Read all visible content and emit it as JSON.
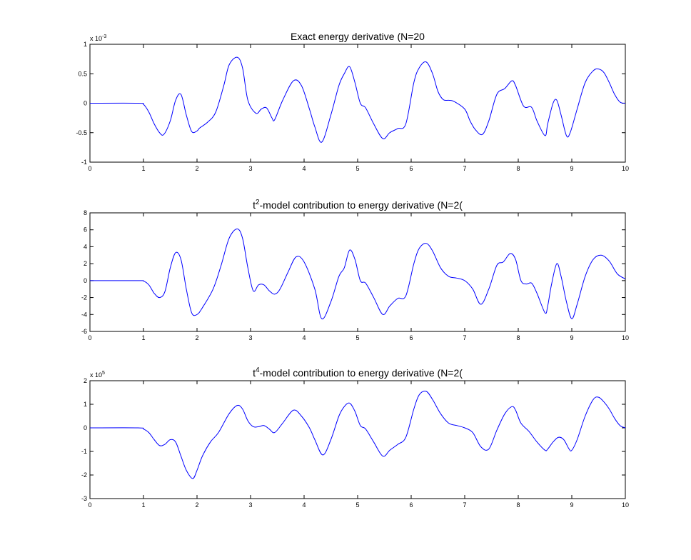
{
  "chart_data": [
    {
      "type": "line",
      "title_prefix": "Exact energy derivative (N=20",
      "title_sup": "",
      "title_suffix": "",
      "exponent_label": {
        "base": "x 10",
        "power": "-3"
      },
      "xlim": [
        0,
        10
      ],
      "ylim": [
        -1,
        1
      ],
      "xticks": [
        0,
        1,
        2,
        3,
        4,
        5,
        6,
        7,
        8,
        9,
        10
      ],
      "yticks": [
        -1,
        -0.5,
        0,
        0.5,
        1
      ],
      "ytick_labels": [
        "-1",
        "-0.5",
        "0",
        "0.5",
        "1"
      ],
      "color": "#0000ff",
      "x": [
        0,
        0.9,
        1.0,
        1.1,
        1.2,
        1.3,
        1.38,
        1.5,
        1.6,
        1.7,
        1.8,
        1.9,
        2.0,
        2.05,
        2.2,
        2.35,
        2.5,
        2.6,
        2.75,
        2.85,
        2.95,
        3.1,
        3.2,
        3.3,
        3.4,
        3.45,
        3.6,
        3.8,
        3.95,
        4.1,
        4.2,
        4.33,
        4.5,
        4.65,
        4.75,
        4.85,
        4.95,
        5.05,
        5.15,
        5.3,
        5.47,
        5.6,
        5.75,
        5.9,
        6.05,
        6.15,
        6.28,
        6.4,
        6.5,
        6.6,
        6.7,
        6.8,
        7.0,
        7.1,
        7.2,
        7.33,
        7.45,
        7.6,
        7.75,
        7.88,
        7.95,
        8.1,
        8.25,
        8.35,
        8.5,
        8.55,
        8.65,
        8.72,
        8.8,
        8.9,
        8.97,
        9.1,
        9.25,
        9.4,
        9.5,
        9.6,
        9.7,
        9.8,
        9.9,
        10
      ],
      "y": [
        0,
        0,
        -0.02,
        -0.15,
        -0.35,
        -0.5,
        -0.53,
        -0.3,
        0.05,
        0.15,
        -0.2,
        -0.48,
        -0.47,
        -0.42,
        -0.32,
        -0.15,
        0.3,
        0.65,
        0.78,
        0.6,
        0.05,
        -0.17,
        -0.1,
        -0.08,
        -0.25,
        -0.28,
        0.05,
        0.38,
        0.3,
        -0.1,
        -0.4,
        -0.66,
        -0.2,
        0.3,
        0.5,
        0.62,
        0.35,
        0.0,
        -0.08,
        -0.35,
        -0.6,
        -0.5,
        -0.43,
        -0.35,
        0.35,
        0.6,
        0.7,
        0.5,
        0.2,
        0.06,
        0.05,
        0.03,
        -0.1,
        -0.3,
        -0.45,
        -0.53,
        -0.3,
        0.15,
        0.25,
        0.38,
        0.3,
        -0.05,
        -0.07,
        -0.3,
        -0.55,
        -0.35,
        0.0,
        0.05,
        -0.2,
        -0.55,
        -0.5,
        -0.1,
        0.35,
        0.55,
        0.58,
        0.52,
        0.35,
        0.15,
        0.02,
        0
      ]
    },
    {
      "type": "line",
      "title_prefix": "t",
      "title_sup": "2",
      "title_suffix": "-model contribution to energy derivative (N=2(",
      "exponent_label": null,
      "xlim": [
        0,
        10
      ],
      "ylim": [
        -6,
        8
      ],
      "xticks": [
        0,
        1,
        2,
        3,
        4,
        5,
        6,
        7,
        8,
        9,
        10
      ],
      "yticks": [
        -6,
        -4,
        -2,
        0,
        2,
        4,
        6,
        8
      ],
      "ytick_labels": [
        "-6",
        "-4",
        "-2",
        "0",
        "2",
        "4",
        "6",
        "8"
      ],
      "color": "#0000ff",
      "x": [
        0,
        0.9,
        1.0,
        1.1,
        1.2,
        1.3,
        1.4,
        1.5,
        1.6,
        1.7,
        1.8,
        1.9,
        2.0,
        2.1,
        2.3,
        2.45,
        2.6,
        2.75,
        2.85,
        2.95,
        3.05,
        3.15,
        3.25,
        3.35,
        3.45,
        3.55,
        3.7,
        3.85,
        4.0,
        4.2,
        4.33,
        4.5,
        4.65,
        4.75,
        4.85,
        4.95,
        5.05,
        5.15,
        5.3,
        5.47,
        5.6,
        5.75,
        5.9,
        6.05,
        6.15,
        6.28,
        6.4,
        6.55,
        6.7,
        6.85,
        7.0,
        7.15,
        7.3,
        7.45,
        7.6,
        7.72,
        7.85,
        7.95,
        8.05,
        8.15,
        8.25,
        8.35,
        8.5,
        8.55,
        8.62,
        8.72,
        8.8,
        8.9,
        9.0,
        9.1,
        9.25,
        9.4,
        9.55,
        9.7,
        9.85,
        10
      ],
      "y": [
        0,
        0,
        -0.05,
        -0.5,
        -1.5,
        -2.0,
        -1.3,
        1.5,
        3.3,
        2.5,
        -1.0,
        -3.8,
        -4.0,
        -3.2,
        -1.0,
        1.8,
        5.0,
        6.1,
        5.0,
        1.5,
        -1.2,
        -0.5,
        -0.5,
        -1.2,
        -1.6,
        -1.0,
        1.0,
        2.8,
        2.2,
        -1.0,
        -4.5,
        -2.5,
        0.5,
        1.5,
        3.6,
        2.5,
        0.0,
        -0.3,
        -2.0,
        -4.0,
        -3.0,
        -2.1,
        -1.8,
        2.0,
        3.8,
        4.4,
        3.5,
        1.5,
        0.5,
        0.3,
        0.0,
        -1.0,
        -2.8,
        -1.0,
        1.8,
        2.2,
        3.2,
        2.5,
        0.0,
        -0.4,
        -0.3,
        -1.5,
        -3.8,
        -3.0,
        -0.5,
        2.0,
        0.5,
        -2.5,
        -4.5,
        -2.8,
        0.5,
        2.5,
        3.0,
        2.3,
        0.8,
        0.2
      ]
    },
    {
      "type": "line",
      "title_prefix": "t",
      "title_sup": "4",
      "title_suffix": "-model contribution to energy derivative (N=2(",
      "exponent_label": {
        "base": "x 10",
        "power": "5"
      },
      "xlim": [
        0,
        10
      ],
      "ylim": [
        -3,
        2
      ],
      "xticks": [
        0,
        1,
        2,
        3,
        4,
        5,
        6,
        7,
        8,
        9,
        10
      ],
      "yticks": [
        -3,
        -2,
        -1,
        0,
        1,
        2
      ],
      "ytick_labels": [
        "-3",
        "-2",
        "-1",
        "0",
        "1",
        "2"
      ],
      "color": "#0000ff",
      "x": [
        0,
        0.9,
        1.0,
        1.1,
        1.2,
        1.3,
        1.4,
        1.5,
        1.6,
        1.7,
        1.8,
        1.92,
        2.0,
        2.1,
        2.25,
        2.4,
        2.6,
        2.75,
        2.85,
        2.95,
        3.05,
        3.15,
        3.25,
        3.35,
        3.45,
        3.6,
        3.8,
        3.95,
        4.1,
        4.2,
        4.35,
        4.5,
        4.65,
        4.75,
        4.85,
        4.95,
        5.05,
        5.15,
        5.3,
        5.47,
        5.6,
        5.75,
        5.9,
        6.05,
        6.15,
        6.28,
        6.4,
        6.55,
        6.7,
        6.85,
        7.0,
        7.15,
        7.3,
        7.45,
        7.6,
        7.75,
        7.88,
        7.95,
        8.05,
        8.2,
        8.35,
        8.5,
        8.55,
        8.65,
        8.75,
        8.85,
        8.95,
        9.0,
        9.1,
        9.25,
        9.4,
        9.5,
        9.6,
        9.7,
        9.8,
        9.9,
        10
      ],
      "y": [
        0,
        0,
        -0.05,
        -0.2,
        -0.5,
        -0.75,
        -0.7,
        -0.5,
        -0.6,
        -1.2,
        -1.8,
        -2.15,
        -1.8,
        -1.2,
        -0.6,
        -0.2,
        0.6,
        0.95,
        0.8,
        0.3,
        0.05,
        0.05,
        0.1,
        -0.05,
        -0.2,
        0.2,
        0.75,
        0.5,
        0.0,
        -0.5,
        -1.15,
        -0.5,
        0.5,
        0.9,
        1.05,
        0.7,
        0.1,
        -0.05,
        -0.6,
        -1.2,
        -0.95,
        -0.7,
        -0.4,
        0.8,
        1.4,
        1.55,
        1.2,
        0.6,
        0.2,
        0.1,
        0.0,
        -0.2,
        -0.8,
        -0.9,
        -0.1,
        0.6,
        0.9,
        0.75,
        0.2,
        -0.15,
        -0.6,
        -0.95,
        -0.9,
        -0.6,
        -0.4,
        -0.5,
        -0.9,
        -0.95,
        -0.5,
        0.5,
        1.2,
        1.3,
        1.1,
        0.8,
        0.4,
        0.1,
        0.0
      ]
    }
  ]
}
